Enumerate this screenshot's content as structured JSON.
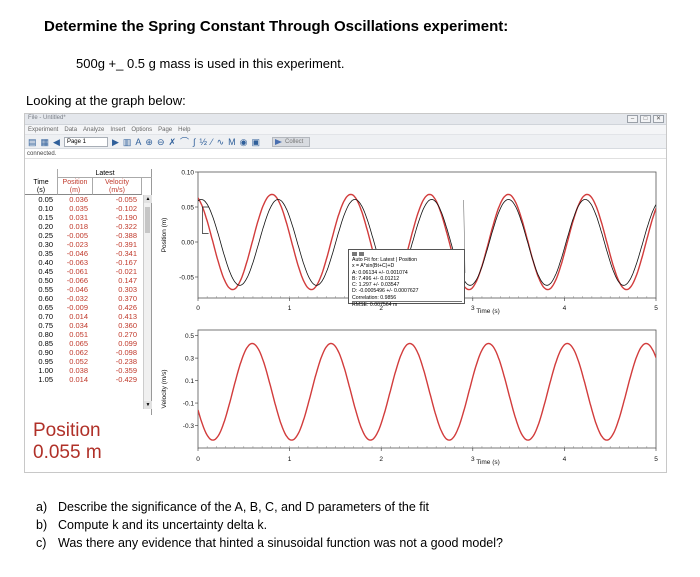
{
  "title": "Determine the Spring Constant Through Oscillations experiment:",
  "subtitle": "500g +_ 0.5 g mass is used in this experiment.",
  "lead": "Looking at the graph below:",
  "app": {
    "window_title": "File - Untitled*",
    "menus": [
      "Experiment",
      "Data",
      "Analyze",
      "Insert",
      "Options",
      "Page",
      "Help"
    ],
    "page_select": "Page 1",
    "collect_label": "Collect",
    "status": "connected."
  },
  "table": {
    "group": "Latest",
    "columns": [
      {
        "name": "Time",
        "unit": "(s)"
      },
      {
        "name": "Position",
        "unit": "(m)"
      },
      {
        "name": "Velocity",
        "unit": "(m/s)"
      }
    ],
    "rows": [
      [
        "0.05",
        "0.036",
        "-0.055"
      ],
      [
        "0.10",
        "0.035",
        "-0.102"
      ],
      [
        "0.15",
        "0.031",
        "-0.190"
      ],
      [
        "0.20",
        "0.018",
        "-0.322"
      ],
      [
        "0.25",
        "-0.005",
        "-0.388"
      ],
      [
        "0.30",
        "-0.023",
        "-0.391"
      ],
      [
        "0.35",
        "-0.046",
        "-0.341"
      ],
      [
        "0.40",
        "-0.063",
        "-0.167"
      ],
      [
        "0.45",
        "-0.061",
        "-0.021"
      ],
      [
        "0.50",
        "-0.066",
        "0.147"
      ],
      [
        "0.55",
        "-0.046",
        "0.303"
      ],
      [
        "0.60",
        "-0.032",
        "0.370"
      ],
      [
        "0.65",
        "-0.009",
        "0.426"
      ],
      [
        "0.70",
        "0.014",
        "0.413"
      ],
      [
        "0.75",
        "0.034",
        "0.360"
      ],
      [
        "0.80",
        "0.051",
        "0.270"
      ],
      [
        "0.85",
        "0.065",
        "0.099"
      ],
      [
        "0.90",
        "0.062",
        "-0.098"
      ],
      [
        "0.95",
        "0.052",
        "-0.238"
      ],
      [
        "1.00",
        "0.038",
        "-0.359"
      ],
      [
        "1.05",
        "0.014",
        "-0.429"
      ]
    ]
  },
  "meter": {
    "label": "Position",
    "value": "0.055 m"
  },
  "fit_box": {
    "header": "Auto Fit for: Latest | Position",
    "equation": "x = A*sin(Bt+C)+D",
    "A": "A: 0.06134 +/- 0.001074",
    "B": "B: 7.496 +/- 0.01212",
    "C": "C: 1.297 +/- 0.03547",
    "D": "D: -0.0005496 +/- 0.0007627",
    "correlation": "Correlation: 0.9856",
    "rmse": "RMSE: 0.007564 m"
  },
  "chart_data": [
    {
      "type": "line",
      "ylabel": "Position (m)",
      "xlabel": "Time (s)",
      "xlim": [
        0,
        5
      ],
      "ylim": [
        -0.08,
        0.1
      ],
      "x_ticks": [
        0,
        1,
        2,
        3,
        4,
        5
      ],
      "y_ticks": [
        "0.10",
        "0.05",
        "0.00",
        "-0.05"
      ],
      "series": [
        {
          "kind": "data",
          "color": "#d23c3c",
          "amplitude": 0.068,
          "period": 0.86,
          "phase_deg": 112,
          "x_range": [
            0,
            5
          ]
        },
        {
          "kind": "fit",
          "color": "#111111",
          "model": "A*sin(Bt+C)+D",
          "A": 0.06134,
          "B": 7.496,
          "C": 1.297,
          "D": -0.0005496,
          "x_range": [
            0,
            5
          ]
        }
      ]
    },
    {
      "type": "line",
      "ylabel": "Velocity (m/s)",
      "xlabel": "Time (s)",
      "xlim": [
        0,
        5
      ],
      "ylim": [
        -0.5,
        0.55
      ],
      "x_ticks": [
        0,
        1,
        2,
        3,
        4,
        5
      ],
      "y_ticks": [
        "0.5",
        "0.3",
        "0.1",
        "-0.1",
        "-0.3"
      ],
      "series": [
        {
          "kind": "data",
          "color": "#d23c3c",
          "amplitude": 0.43,
          "period": 0.86,
          "phase_deg": 202,
          "x_range": [
            0,
            5
          ]
        }
      ]
    }
  ],
  "questions": [
    {
      "key": "a)",
      "text": "Describe the significance of the A, B, C, and D parameters of the fit"
    },
    {
      "key": "b)",
      "text": "Compute k and its uncertainty delta k."
    },
    {
      "key": "c)",
      "text": "Was there any evidence that hinted a sinusoidal function was not a good model?"
    }
  ]
}
